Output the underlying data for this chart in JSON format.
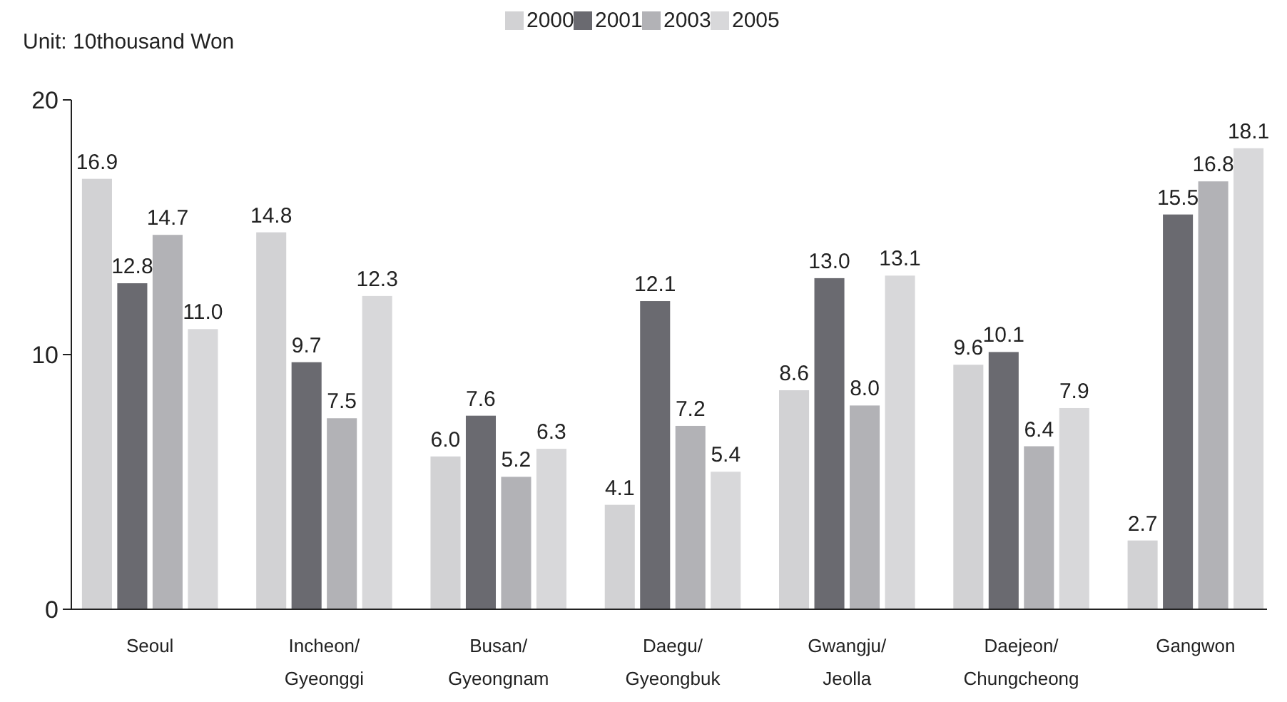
{
  "chart_data": {
    "type": "bar",
    "ylabel": "Unit: 10thousand Won",
    "categories": [
      "Seoul",
      "Incheon/Gyeonggi",
      "Busan/Gyeongnam",
      "Daegu/Gyeongbuk",
      "Gwangju/Jeolla",
      "Daejeon/Chungcheong",
      "Gangwon"
    ],
    "series": [
      {
        "name": "2000",
        "color": "#d2d2d4",
        "values": [
          16.9,
          14.8,
          6.0,
          4.1,
          8.6,
          9.6,
          2.7
        ],
        "value_labels": [
          "16.9",
          "14.8",
          "6.0",
          "4.1",
          "8.6",
          "9.6",
          "2.7"
        ]
      },
      {
        "name": "2001",
        "color": "#6a6a70",
        "values": [
          12.8,
          9.7,
          7.6,
          12.1,
          13.0,
          10.1,
          15.5
        ],
        "value_labels": [
          "12.8",
          "9.7",
          "7.6",
          "12.1",
          "13.0",
          "10.1",
          "15.5"
        ]
      },
      {
        "name": "2003",
        "color": "#b2b2b6",
        "values": [
          14.7,
          7.5,
          5.2,
          7.2,
          8.0,
          6.4,
          16.8
        ],
        "value_labels": [
          "14.7",
          "7.5",
          "5.2",
          "7.2",
          "8.0",
          "6.4",
          "16.8"
        ]
      },
      {
        "name": "2005",
        "color": "#d8d8da",
        "values": [
          11.0,
          12.3,
          6.3,
          5.4,
          13.1,
          7.9,
          18.1
        ],
        "value_labels": [
          "11.0",
          "12.3",
          "6.3",
          "5.4",
          "13.1",
          "7.9",
          "18.1"
        ]
      }
    ],
    "ylim": [
      0,
      20
    ],
    "yticks": [
      0,
      10,
      20
    ],
    "legend": "top",
    "grid": false
  }
}
